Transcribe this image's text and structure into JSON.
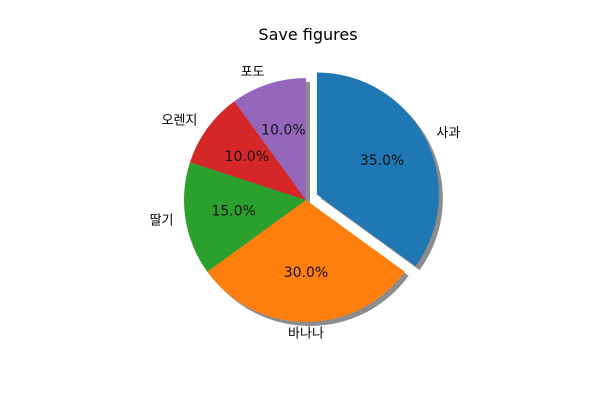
{
  "chart_data": {
    "type": "pie",
    "title": "Save figures",
    "categories": [
      "사과",
      "바나나",
      "딸기",
      "오렌지",
      "포도"
    ],
    "values": [
      35,
      30,
      15,
      10,
      10
    ],
    "value_labels": [
      "35.0%",
      "30.0%",
      "15.0%",
      "10.0%",
      "10.0%"
    ],
    "colors": [
      "#1f77b4",
      "#ff7f0e",
      "#2ca02c",
      "#d62728",
      "#9467bd"
    ],
    "explode": [
      0.1,
      0,
      0,
      0,
      0
    ],
    "start_angle_deg": 90,
    "direction": "clockwise",
    "shadow": true,
    "legend": "none"
  }
}
